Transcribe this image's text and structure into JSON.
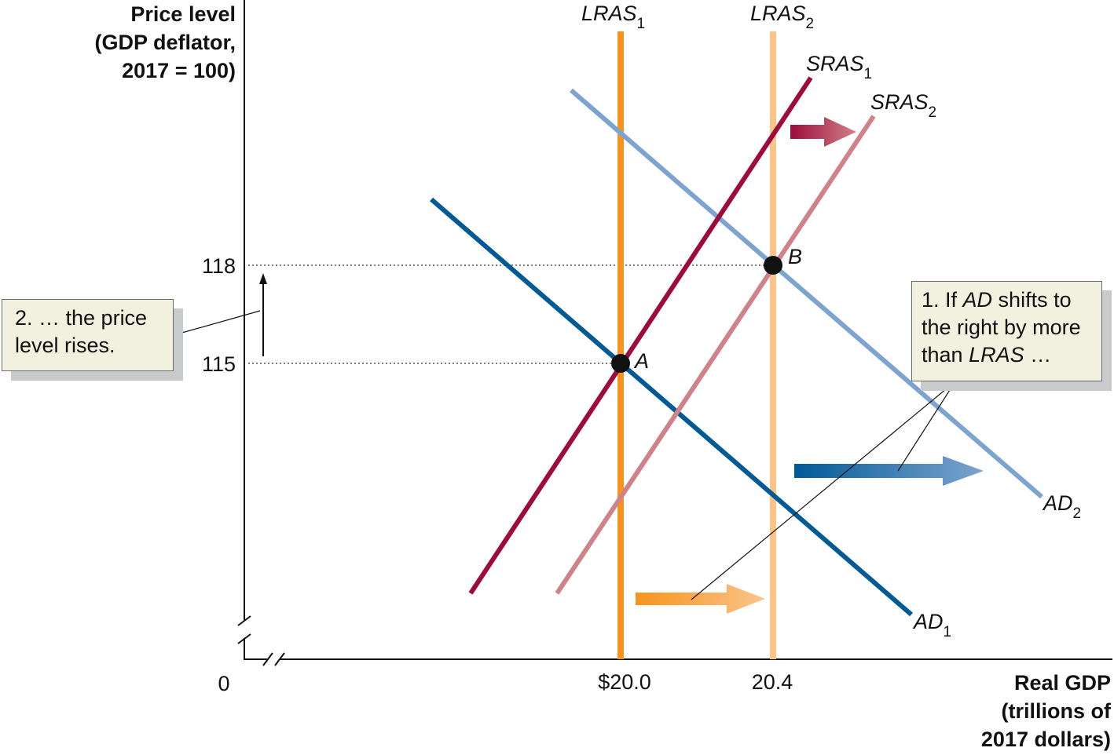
{
  "diagram": {
    "y_axis_title": [
      "Price level",
      "(GDP deflator,",
      "2017 = 100)"
    ],
    "x_axis_title": [
      "Real GDP",
      "(trillions of",
      "2017 dollars)"
    ],
    "origin_label": "0",
    "y_ticks": [
      "118",
      "115"
    ],
    "x_ticks": [
      "$20.0",
      "20.4"
    ],
    "curves": {
      "lras1": {
        "name": "LRAS",
        "sub": "1",
        "color": "#f7941d"
      },
      "lras2": {
        "name": "LRAS",
        "sub": "2",
        "color": "#fbc48b"
      },
      "sras1": {
        "name": "SRAS",
        "sub": "1",
        "color": "#9e0b3b"
      },
      "sras2": {
        "name": "SRAS",
        "sub": "2",
        "color": "#cf8288"
      },
      "ad1": {
        "name": "AD",
        "sub": "1",
        "color": "#005a96"
      },
      "ad2": {
        "name": "AD",
        "sub": "2",
        "color": "#7da4cf"
      }
    },
    "points": {
      "a": "A",
      "b": "B"
    },
    "callout_right": {
      "line1": "1. If ",
      "line1_em": "AD",
      "line1_rest": " shifts to",
      "line2": "the right by more",
      "line3": "than ",
      "line3_em": "LRAS",
      "line3_rest": " …"
    },
    "callout_left": {
      "line1": "2. … the price",
      "line2": "level rises."
    }
  }
}
